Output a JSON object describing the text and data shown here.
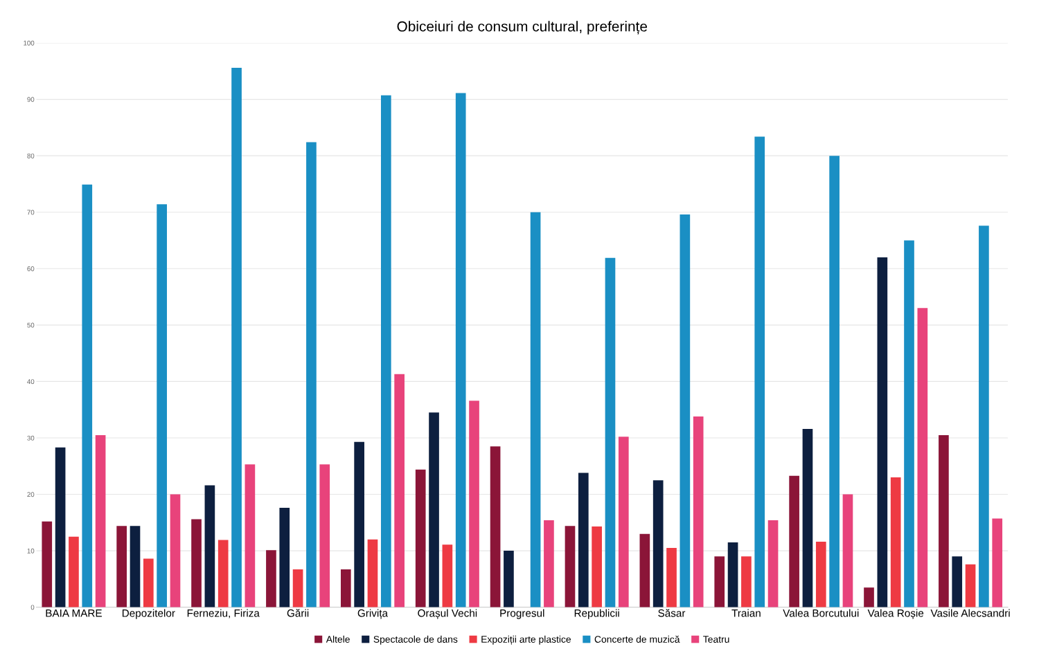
{
  "chart_data": {
    "type": "bar",
    "title": "Obiceiuri de consum cultural, preferințe",
    "categories": [
      "BAIA MARE",
      "Depozitelor",
      "Ferneziu, Firiza",
      "Gării",
      "Grivița",
      "Orașul Vechi",
      "Progresul",
      "Republicii",
      "Săsar",
      "Traian",
      "Valea Borcutului",
      "Valea Roșie",
      "Vasile Alecsandri"
    ],
    "series": [
      {
        "name": "Altele",
        "color": "#8b1538",
        "values": [
          15.2,
          14.4,
          15.6,
          10.1,
          6.7,
          24.4,
          28.5,
          14.4,
          13.0,
          9.0,
          23.3,
          3.5,
          30.5
        ]
      },
      {
        "name": "Spectacole de dans",
        "color": "#0d1f3f",
        "values": [
          28.3,
          14.4,
          21.6,
          17.6,
          29.3,
          34.5,
          10.0,
          23.8,
          22.5,
          11.5,
          31.6,
          62.0,
          9.0
        ]
      },
      {
        "name": "Expoziții arte plastice",
        "color": "#ee3a43",
        "values": [
          12.5,
          8.6,
          11.9,
          6.7,
          12.0,
          11.1,
          null,
          14.3,
          10.5,
          9.0,
          11.6,
          23.0,
          7.6
        ]
      },
      {
        "name": "Concerte de muzică",
        "color": "#1a8fc4",
        "values": [
          74.9,
          71.4,
          95.6,
          82.4,
          90.7,
          91.1,
          70.0,
          61.9,
          69.6,
          83.4,
          80.0,
          65.0,
          67.6
        ]
      },
      {
        "name": "Teatru",
        "color": "#e8437b",
        "values": [
          30.5,
          20.0,
          25.3,
          25.3,
          41.3,
          36.6,
          15.4,
          30.2,
          33.8,
          15.4,
          20.0,
          53.0,
          15.7
        ]
      }
    ],
    "ylim": [
      0,
      100
    ],
    "yticks": [
      0,
      10,
      20,
      30,
      40,
      50,
      60,
      70,
      80,
      90,
      100
    ],
    "grid": "y",
    "legend": "bottom"
  }
}
